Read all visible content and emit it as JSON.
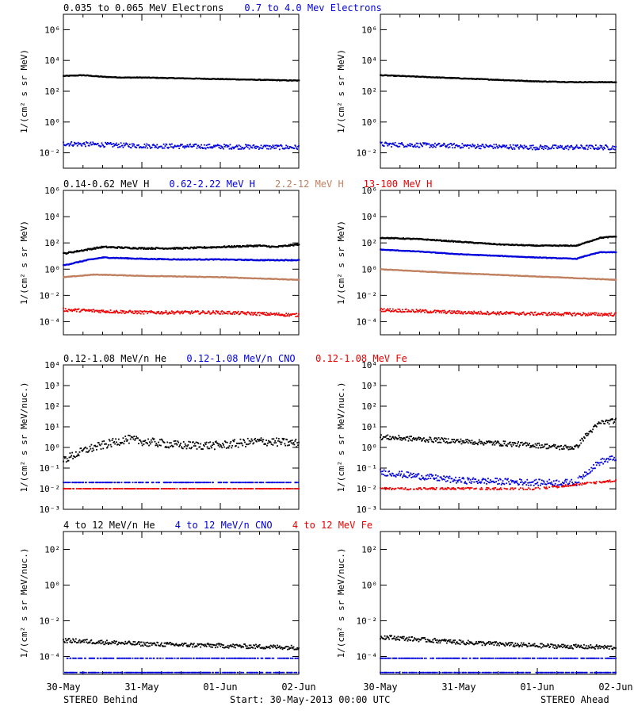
{
  "colors": {
    "black": "#000000",
    "blue": "#0000dd",
    "brown": "#c08060",
    "red": "#ee0000"
  },
  "footer": {
    "left": "STEREO Behind",
    "center": "Start: 30-May-2013 00:00 UTC",
    "right": "STEREO Ahead"
  },
  "time_ticks": [
    "30-May",
    "31-May",
    "01-Jun",
    "02-Jun"
  ],
  "time_range_days": [
    0,
    3
  ],
  "chart_data": [
    {
      "type": "scatter",
      "row": 1,
      "side": "STEREO Behind",
      "ylabel": "1/(cm² s sr MeV)",
      "yscale": "log",
      "ylim_exp": [
        -3,
        7
      ],
      "ytick_exps": [
        -2,
        0,
        2,
        4,
        6
      ],
      "x_ticks": [
        "30-May",
        "31-May",
        "01-Jun",
        "02-Jun"
      ],
      "legend": [
        {
          "name": "0.035 to 0.065 MeV Electrons",
          "color": "#000000"
        },
        {
          "name": "0.7 to 4.0 Mev Electrons",
          "color": "#0000dd"
        }
      ],
      "series": [
        {
          "name": "0.035 to 0.065 MeV Electrons",
          "color": "#000000",
          "x": [
            0,
            0.25,
            0.5,
            0.75,
            1,
            1.5,
            2,
            2.5,
            3
          ],
          "log10_y": [
            3.0,
            3.05,
            2.95,
            2.9,
            2.9,
            2.85,
            2.8,
            2.75,
            2.7
          ],
          "spread": 0.02,
          "style": "line"
        },
        {
          "name": "0.7 to 4.0 Mev Electrons",
          "color": "#0000dd",
          "x": [
            0,
            1,
            2,
            3
          ],
          "log10_y": [
            -1.4,
            -1.55,
            -1.6,
            -1.65
          ],
          "spread": 0.15,
          "style": "dots"
        }
      ]
    },
    {
      "type": "scatter",
      "row": 1,
      "side": "STEREO Ahead",
      "ylabel": "1/(cm² s sr MeV)",
      "yscale": "log",
      "ylim_exp": [
        -3,
        7
      ],
      "ytick_exps": [
        -2,
        0,
        2,
        4,
        6
      ],
      "x_ticks": [
        "30-May",
        "31-May",
        "01-Jun",
        "02-Jun"
      ],
      "series": [
        {
          "name": "0.035 to 0.065 MeV Electrons",
          "color": "#000000",
          "x": [
            0,
            0.5,
            1,
            1.5,
            2,
            2.5,
            3
          ],
          "log10_y": [
            3.05,
            2.95,
            2.85,
            2.75,
            2.65,
            2.6,
            2.6
          ],
          "spread": 0.02,
          "style": "line"
        },
        {
          "name": "0.7 to 4.0 Mev Electrons",
          "color": "#0000dd",
          "x": [
            0,
            1,
            2,
            3
          ],
          "log10_y": [
            -1.45,
            -1.55,
            -1.65,
            -1.65
          ],
          "spread": 0.15,
          "style": "dots"
        }
      ]
    },
    {
      "type": "scatter",
      "row": 2,
      "side": "STEREO Behind",
      "ylabel": "1/(cm² s sr MeV)",
      "yscale": "log",
      "ylim_exp": [
        -5,
        6
      ],
      "ytick_exps": [
        -4,
        -2,
        0,
        2,
        4,
        6
      ],
      "x_ticks": [
        "30-May",
        "31-May",
        "01-Jun",
        "02-Jun"
      ],
      "legend": [
        {
          "name": "0.14-0.62 MeV H",
          "color": "#000000"
        },
        {
          "name": "0.62-2.22 MeV H",
          "color": "#0000dd"
        },
        {
          "name": "2.2-12 MeV H",
          "color": "#c08060"
        },
        {
          "name": "13-100 MeV H",
          "color": "#ee0000"
        }
      ],
      "series": [
        {
          "name": "0.14-0.62 MeV H",
          "color": "#000000",
          "x": [
            0,
            0.3,
            0.5,
            1,
            1.5,
            2,
            2.5,
            2.7,
            3
          ],
          "log10_y": [
            1.2,
            1.5,
            1.7,
            1.6,
            1.6,
            1.7,
            1.8,
            1.7,
            1.9
          ],
          "spread": 0.05,
          "style": "line"
        },
        {
          "name": "0.62-2.22 MeV H",
          "color": "#0000dd",
          "x": [
            0,
            0.3,
            0.5,
            1,
            1.5,
            2,
            2.5,
            3
          ],
          "log10_y": [
            0.3,
            0.7,
            0.9,
            0.8,
            0.75,
            0.75,
            0.7,
            0.7
          ],
          "spread": 0.03,
          "style": "line"
        },
        {
          "name": "2.2-12 MeV H",
          "color": "#c08060",
          "x": [
            0,
            0.4,
            1,
            2,
            3
          ],
          "log10_y": [
            -0.6,
            -0.4,
            -0.5,
            -0.6,
            -0.8
          ],
          "spread": 0.02,
          "style": "line"
        },
        {
          "name": "13-100 MeV H",
          "color": "#ee0000",
          "x": [
            0,
            1,
            2,
            3
          ],
          "log10_y": [
            -3.1,
            -3.3,
            -3.3,
            -3.5
          ],
          "spread": 0.12,
          "style": "dots"
        }
      ]
    },
    {
      "type": "scatter",
      "row": 2,
      "side": "STEREO Ahead",
      "ylabel": "1/(cm² s sr MeV)",
      "yscale": "log",
      "ylim_exp": [
        -5,
        6
      ],
      "ytick_exps": [
        -4,
        -2,
        0,
        2,
        4,
        6
      ],
      "x_ticks": [
        "30-May",
        "31-May",
        "01-Jun",
        "02-Jun"
      ],
      "series": [
        {
          "name": "0.14-0.62 MeV H",
          "color": "#000000",
          "x": [
            0,
            0.5,
            1,
            1.5,
            2,
            2.5,
            2.6,
            2.8,
            3
          ],
          "log10_y": [
            2.4,
            2.3,
            2.1,
            1.9,
            1.8,
            1.8,
            2.0,
            2.4,
            2.5
          ],
          "spread": 0.03,
          "style": "line"
        },
        {
          "name": "0.62-2.22 MeV H",
          "color": "#0000dd",
          "x": [
            0,
            0.5,
            1,
            2,
            2.5,
            2.6,
            2.8,
            3
          ],
          "log10_y": [
            1.5,
            1.35,
            1.15,
            0.9,
            0.8,
            1.0,
            1.3,
            1.3
          ],
          "spread": 0.02,
          "style": "line"
        },
        {
          "name": "2.2-12 MeV H",
          "color": "#c08060",
          "x": [
            0,
            1,
            2,
            3
          ],
          "log10_y": [
            0.0,
            -0.3,
            -0.55,
            -0.8
          ],
          "spread": 0.02,
          "style": "line"
        },
        {
          "name": "13-100 MeV H",
          "color": "#ee0000",
          "x": [
            0,
            1,
            2,
            3
          ],
          "log10_y": [
            -3.1,
            -3.3,
            -3.4,
            -3.45
          ],
          "spread": 0.12,
          "style": "dots"
        }
      ]
    },
    {
      "type": "scatter",
      "row": 3,
      "side": "STEREO Behind",
      "ylabel": "1/(cm² s sr MeV/nuc.)",
      "yscale": "log",
      "ylim_exp": [
        -3,
        4
      ],
      "ytick_exps": [
        -3,
        -2,
        -1,
        0,
        1,
        2,
        3,
        4
      ],
      "x_ticks": [
        "30-May",
        "31-May",
        "01-Jun",
        "02-Jun"
      ],
      "legend": [
        {
          "name": "0.12-1.08 MeV/n He",
          "color": "#000000"
        },
        {
          "name": "0.12-1.08 MeV/n CNO",
          "color": "#0000dd"
        },
        {
          "name": "0.12-1.08 MeV Fe",
          "color": "#ee0000"
        }
      ],
      "series": [
        {
          "name": "0.12-1.08 MeV/n He",
          "color": "#000000",
          "x": [
            0,
            0.3,
            0.5,
            0.8,
            1,
            1.5,
            2,
            2.5,
            3
          ],
          "log10_y": [
            -0.6,
            -0.1,
            0.1,
            0.4,
            0.3,
            0.1,
            0.1,
            0.3,
            0.2
          ],
          "spread": 0.2,
          "style": "dots"
        },
        {
          "name": "0.12-1.08 MeV/n CNO",
          "color": "#0000dd",
          "x": [
            0,
            1,
            2,
            3
          ],
          "log10_y": [
            -1.7,
            -1.7,
            -1.7,
            -1.7
          ],
          "spread": 0.0,
          "style": "floor"
        },
        {
          "name": "0.12-1.08 MeV Fe",
          "color": "#ee0000",
          "x": [
            0,
            1,
            2,
            3
          ],
          "log10_y": [
            -2.0,
            -2.0,
            -2.0,
            -2.0
          ],
          "spread": 0.0,
          "style": "floor"
        }
      ]
    },
    {
      "type": "scatter",
      "row": 3,
      "side": "STEREO Ahead",
      "ylabel": "1/(cm² s sr MeV/nuc.)",
      "yscale": "log",
      "ylim_exp": [
        -3,
        4
      ],
      "ytick_exps": [
        -3,
        -2,
        -1,
        0,
        1,
        2,
        3,
        4
      ],
      "x_ticks": [
        "30-May",
        "31-May",
        "01-Jun",
        "02-Jun"
      ],
      "series": [
        {
          "name": "0.12-1.08 MeV/n He",
          "color": "#000000",
          "x": [
            0,
            0.5,
            1,
            1.5,
            2,
            2.3,
            2.5,
            2.6,
            2.8,
            3
          ],
          "log10_y": [
            0.5,
            0.4,
            0.3,
            0.2,
            0.1,
            0.0,
            0.0,
            0.5,
            1.2,
            1.3
          ],
          "spread": 0.12,
          "style": "dots"
        },
        {
          "name": "0.12-1.08 MeV/n CNO",
          "color": "#0000dd",
          "x": [
            0,
            0.5,
            1,
            2,
            2.5,
            2.6,
            2.8,
            3
          ],
          "log10_y": [
            -1.2,
            -1.4,
            -1.6,
            -1.7,
            -1.7,
            -1.3,
            -0.7,
            -0.5
          ],
          "spread": 0.15,
          "style": "dots"
        },
        {
          "name": "0.12-1.08 MeV Fe",
          "color": "#ee0000",
          "x": [
            0,
            1,
            2,
            2.5,
            3
          ],
          "log10_y": [
            -2.0,
            -2.0,
            -2.0,
            -1.8,
            -1.6
          ],
          "spread": 0.05,
          "style": "floor"
        }
      ]
    },
    {
      "type": "scatter",
      "row": 4,
      "side": "STEREO Behind",
      "ylabel": "1/(cm² s sr MeV/nuc.)",
      "yscale": "log",
      "ylim_exp": [
        -5,
        3
      ],
      "ytick_exps": [
        -4,
        -2,
        0,
        2
      ],
      "x_ticks": [
        "30-May",
        "31-May",
        "01-Jun",
        "02-Jun"
      ],
      "legend": [
        {
          "name": "4 to 12 MeV/n He",
          "color": "#000000"
        },
        {
          "name": "4 to 12 MeV/n CNO",
          "color": "#0000dd"
        },
        {
          "name": "4 to 12 MeV Fe",
          "color": "#ee0000"
        }
      ],
      "series": [
        {
          "name": "4 to 12 MeV/n He",
          "color": "#000000",
          "x": [
            0,
            1,
            2,
            3
          ],
          "log10_y": [
            -3.1,
            -3.3,
            -3.4,
            -3.5
          ],
          "spread": 0.12,
          "style": "dots"
        },
        {
          "name": "4 to 12 MeV/n CNO",
          "color": "#0000dd",
          "x": [
            0,
            1,
            2,
            3
          ],
          "log10_y": [
            -4.1,
            -4.1,
            -4.1,
            -4.1
          ],
          "spread": 0.0,
          "style": "floor"
        },
        {
          "name": "4 to 12 MeV/n CNO (floor)",
          "color": "#0000dd",
          "x": [
            0,
            1,
            2,
            3
          ],
          "log10_y": [
            -4.9,
            -4.9,
            -4.9,
            -4.9
          ],
          "spread": 0.0,
          "style": "floor"
        }
      ]
    },
    {
      "type": "scatter",
      "row": 4,
      "side": "STEREO Ahead",
      "ylabel": "1/(cm² s sr MeV/nuc.)",
      "yscale": "log",
      "ylim_exp": [
        -5,
        3
      ],
      "ytick_exps": [
        -4,
        -2,
        0,
        2
      ],
      "x_ticks": [
        "30-May",
        "31-May",
        "01-Jun",
        "02-Jun"
      ],
      "series": [
        {
          "name": "4 to 12 MeV/n He",
          "color": "#000000",
          "x": [
            0,
            1,
            2,
            3
          ],
          "log10_y": [
            -2.9,
            -3.2,
            -3.4,
            -3.5
          ],
          "spread": 0.12,
          "style": "dots"
        },
        {
          "name": "4 to 12 MeV/n CNO",
          "color": "#0000dd",
          "x": [
            0,
            1,
            2,
            3
          ],
          "log10_y": [
            -4.1,
            -4.1,
            -4.1,
            -4.1
          ],
          "spread": 0.0,
          "style": "floor"
        },
        {
          "name": "4 to 12 MeV/n CNO (floor)",
          "color": "#0000dd",
          "x": [
            0,
            1,
            2,
            3
          ],
          "log10_y": [
            -4.9,
            -4.9,
            -4.9,
            -4.9
          ],
          "spread": 0.0,
          "style": "floor"
        }
      ]
    }
  ]
}
